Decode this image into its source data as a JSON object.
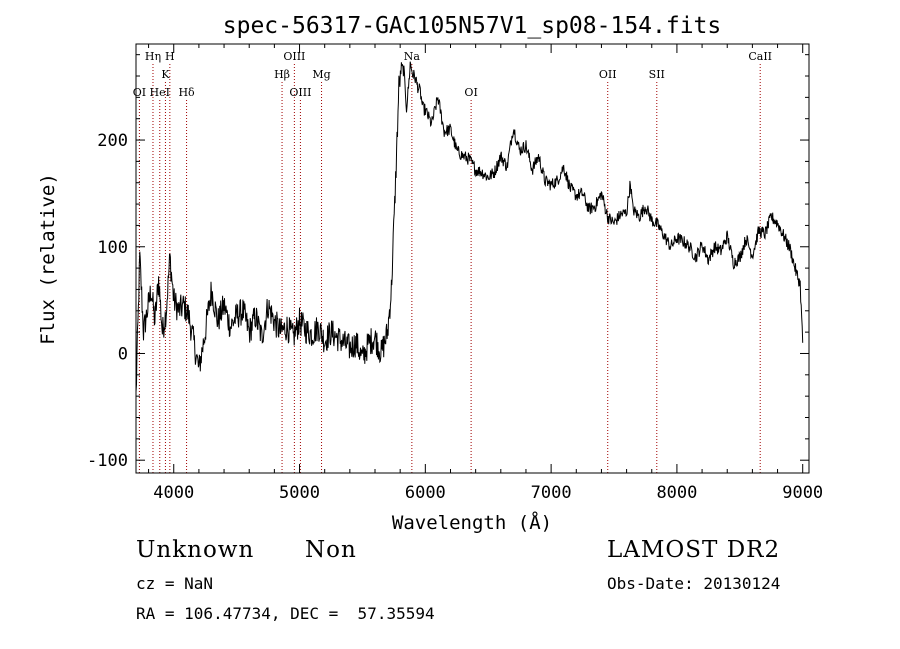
{
  "chart_data": {
    "type": "line",
    "title": "spec-56317-GAC105N57V1_sp08-154.fits",
    "xlabel": "Wavelength (Å)",
    "ylabel": "Flux (relative)",
    "xlim": [
      3700,
      9050
    ],
    "ylim": [
      -112,
      290
    ],
    "xticks": [
      4000,
      5000,
      6000,
      7000,
      8000,
      9000
    ],
    "yticks": [
      -100,
      0,
      100,
      200
    ],
    "grid": false,
    "line_color": "#000000",
    "marker_color": "#a00000",
    "series": [
      {
        "x": [
          3700,
          3730,
          3760,
          3790,
          3820,
          3850,
          3880,
          3910,
          3940,
          3970,
          4000,
          4040,
          4080,
          4120,
          4160,
          4200,
          4250,
          4300,
          4350,
          4400,
          4450,
          4500,
          4550,
          4600,
          4650,
          4700,
          4750,
          4800,
          4850,
          4900,
          4950,
          5000,
          5050,
          5100,
          5150,
          5200,
          5250,
          5300,
          5350,
          5400,
          5450,
          5500,
          5550,
          5600,
          5650,
          5700,
          5730,
          5760,
          5790,
          5810,
          5830,
          5850,
          5870,
          5880,
          5900,
          5920,
          5940,
          5960,
          5980,
          6000,
          6050,
          6100,
          6150,
          6200,
          6250,
          6300,
          6350,
          6400,
          6450,
          6500,
          6550,
          6600,
          6650,
          6700,
          6750,
          6800,
          6850,
          6900,
          6950,
          7000,
          7050,
          7100,
          7150,
          7200,
          7250,
          7300,
          7350,
          7400,
          7450,
          7500,
          7550,
          7600,
          7630,
          7650,
          7700,
          7750,
          7800,
          7850,
          7900,
          7950,
          8000,
          8050,
          8100,
          8150,
          8200,
          8250,
          8300,
          8350,
          8400,
          8450,
          8500,
          8550,
          8600,
          8650,
          8700,
          8750,
          8800,
          8850,
          8900,
          8950,
          8980,
          9000
        ],
        "y": [
          -40,
          90,
          20,
          40,
          60,
          30,
          70,
          20,
          40,
          90,
          50,
          40,
          45,
          35,
          10,
          -15,
          20,
          60,
          30,
          45,
          25,
          35,
          40,
          20,
          35,
          15,
          45,
          30,
          20,
          25,
          15,
          30,
          22,
          18,
          25,
          12,
          20,
          15,
          10,
          5,
          10,
          -5,
          10,
          15,
          0,
          20,
          60,
          150,
          250,
          268,
          265,
          230,
          255,
          272,
          262,
          258,
          250,
          245,
          230,
          228,
          215,
          240,
          208,
          210,
          190,
          185,
          182,
          172,
          170,
          165,
          170,
          185,
          175,
          212,
          190,
          195,
          172,
          185,
          162,
          158,
          162,
          175,
          155,
          148,
          150,
          135,
          138,
          150,
          128,
          122,
          130,
          132,
          160,
          135,
          128,
          138,
          125,
          120,
          110,
          100,
          108,
          105,
          100,
          90,
          102,
          88,
          100,
          96,
          110,
          85,
          90,
          108,
          92,
          115,
          112,
          128,
          122,
          110,
          98,
          75,
          65,
          10
        ],
        "jitter": 6
      }
    ],
    "line_markers": [
      {
        "label": "OI",
        "x": 3727,
        "row": 3
      },
      {
        "label": "Hη",
        "x": 3835,
        "row": 1
      },
      {
        "label": "HeI",
        "x": 3889,
        "row": 3
      },
      {
        "label": "K",
        "x": 3934,
        "row": 2
      },
      {
        "label": "H",
        "x": 3969,
        "row": 1
      },
      {
        "label": "Hδ",
        "x": 4102,
        "row": 3
      },
      {
        "label": "Hβ",
        "x": 4861,
        "row": 2
      },
      {
        "label": "OIII",
        "x": 4959,
        "row": 1
      },
      {
        "label": "OIII",
        "x": 5007,
        "row": 3
      },
      {
        "label": "Mg",
        "x": 5175,
        "row": 2
      },
      {
        "label": "Na",
        "x": 5893,
        "row": 1
      },
      {
        "label": "OI",
        "x": 6364,
        "row": 3
      },
      {
        "label": "OII",
        "x": 7450,
        "row": 2
      },
      {
        "label": "SII",
        "x": 7840,
        "row": 2
      },
      {
        "label": "CaII",
        "x": 8662,
        "row": 1
      }
    ]
  },
  "info": {
    "class_label": "Unknown",
    "subclass_label": "Non",
    "cz_line": "cz = NaN",
    "radec_line": "RA = 106.47734, DEC =  57.35594",
    "survey": "LAMOST DR2",
    "obs_date_line": "Obs-Date: 20130124"
  }
}
